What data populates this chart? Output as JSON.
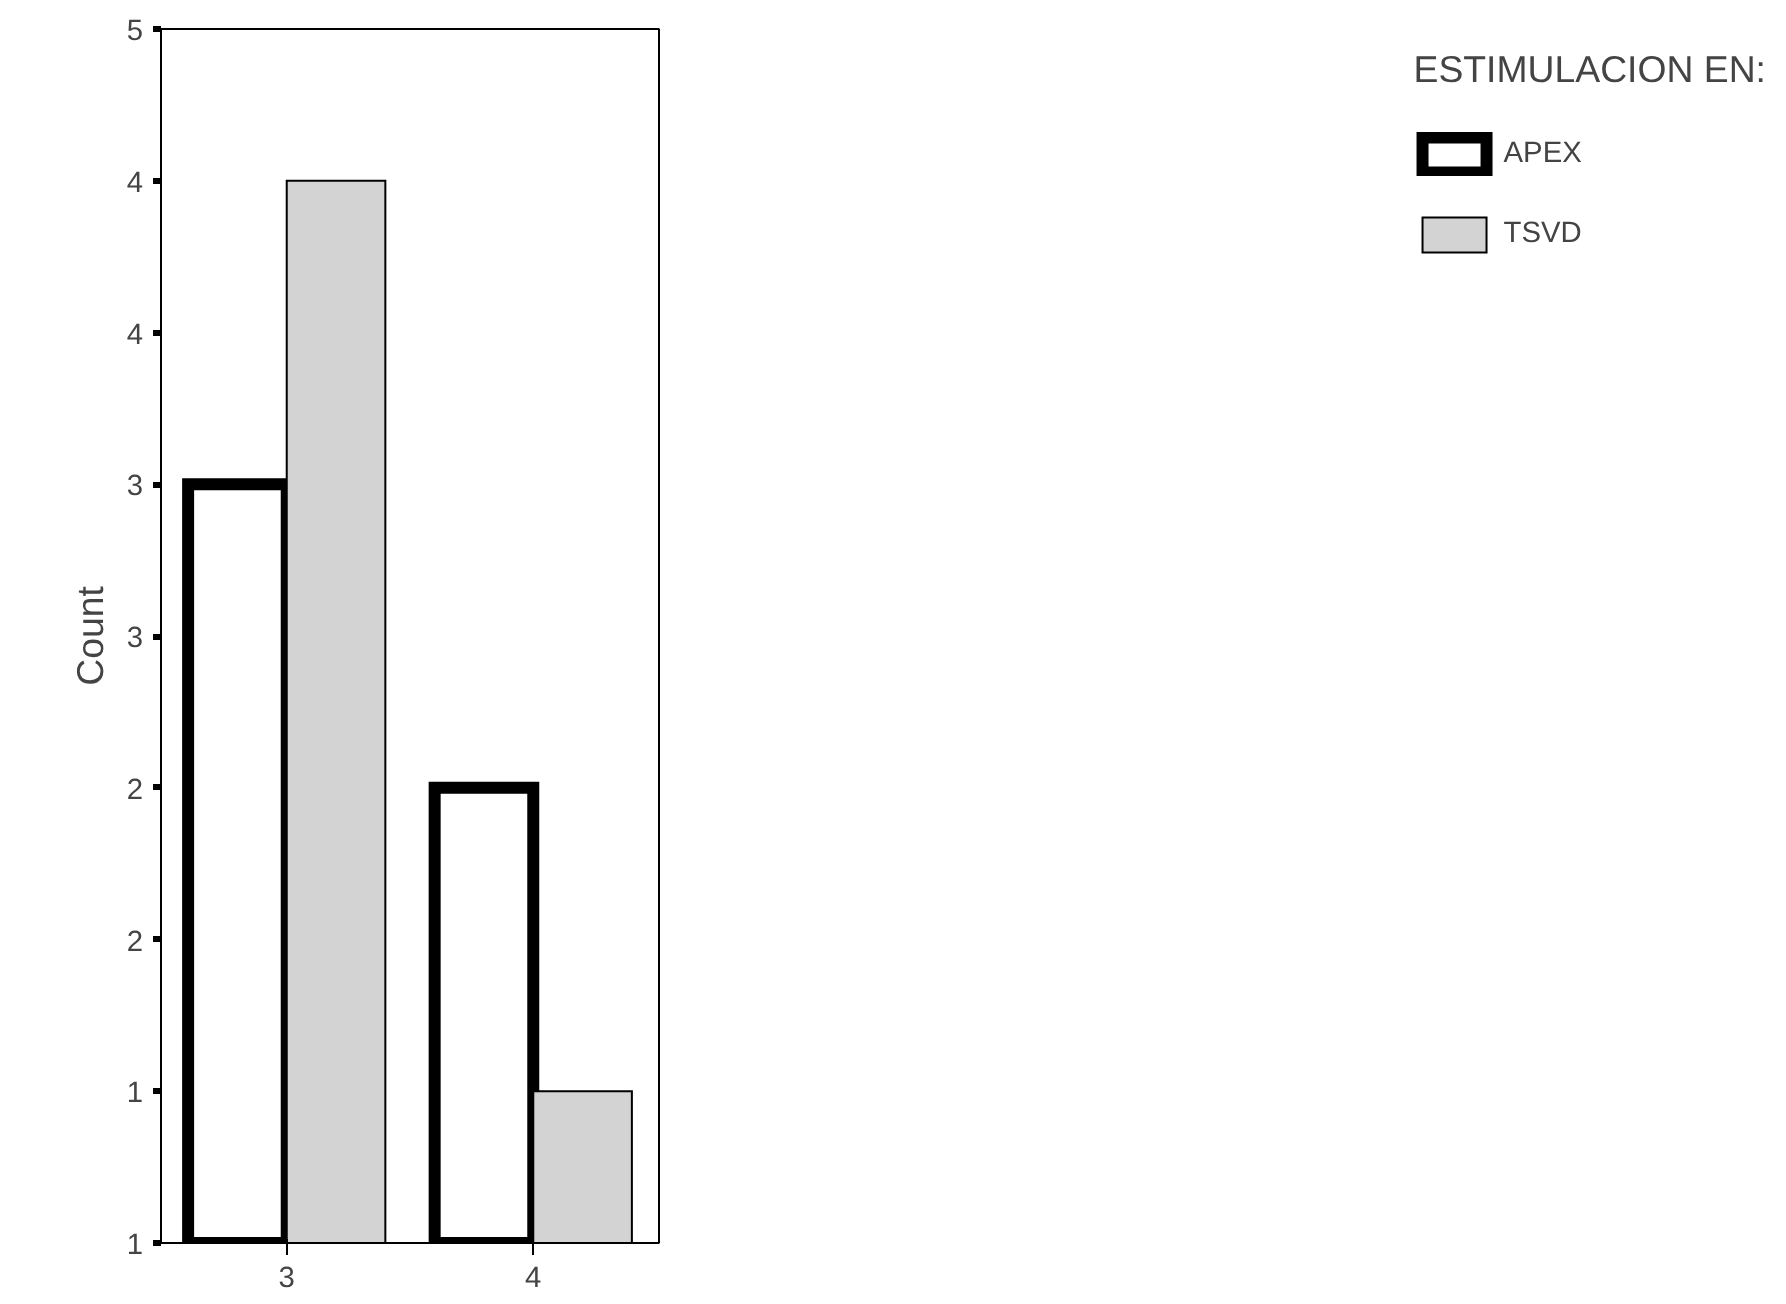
{
  "chart_data": {
    "type": "bar",
    "ylabel": "Count",
    "legend_title": "ESTIMULACION EN:",
    "categories": [
      "3",
      "4"
    ],
    "series": [
      {
        "name": "APEX",
        "color": "#ffffff",
        "values": [
          3.5,
          2.5
        ]
      },
      {
        "name": "TSVD",
        "color": "#d3d3d3",
        "values": [
          4.5,
          1.5
        ]
      }
    ],
    "ylim": [
      1,
      5
    ],
    "yticks": [
      {
        "value": 1,
        "label": "1"
      },
      {
        "value": 1.5,
        "label": "1"
      },
      {
        "value": 2,
        "label": "2"
      },
      {
        "value": 2.5,
        "label": "2"
      },
      {
        "value": 3,
        "label": "3"
      },
      {
        "value": 3.5,
        "label": "3"
      },
      {
        "value": 4,
        "label": "4"
      },
      {
        "value": 4.5,
        "label": "4"
      },
      {
        "value": 5,
        "label": "5"
      }
    ],
    "grid": false,
    "legend": "right"
  }
}
